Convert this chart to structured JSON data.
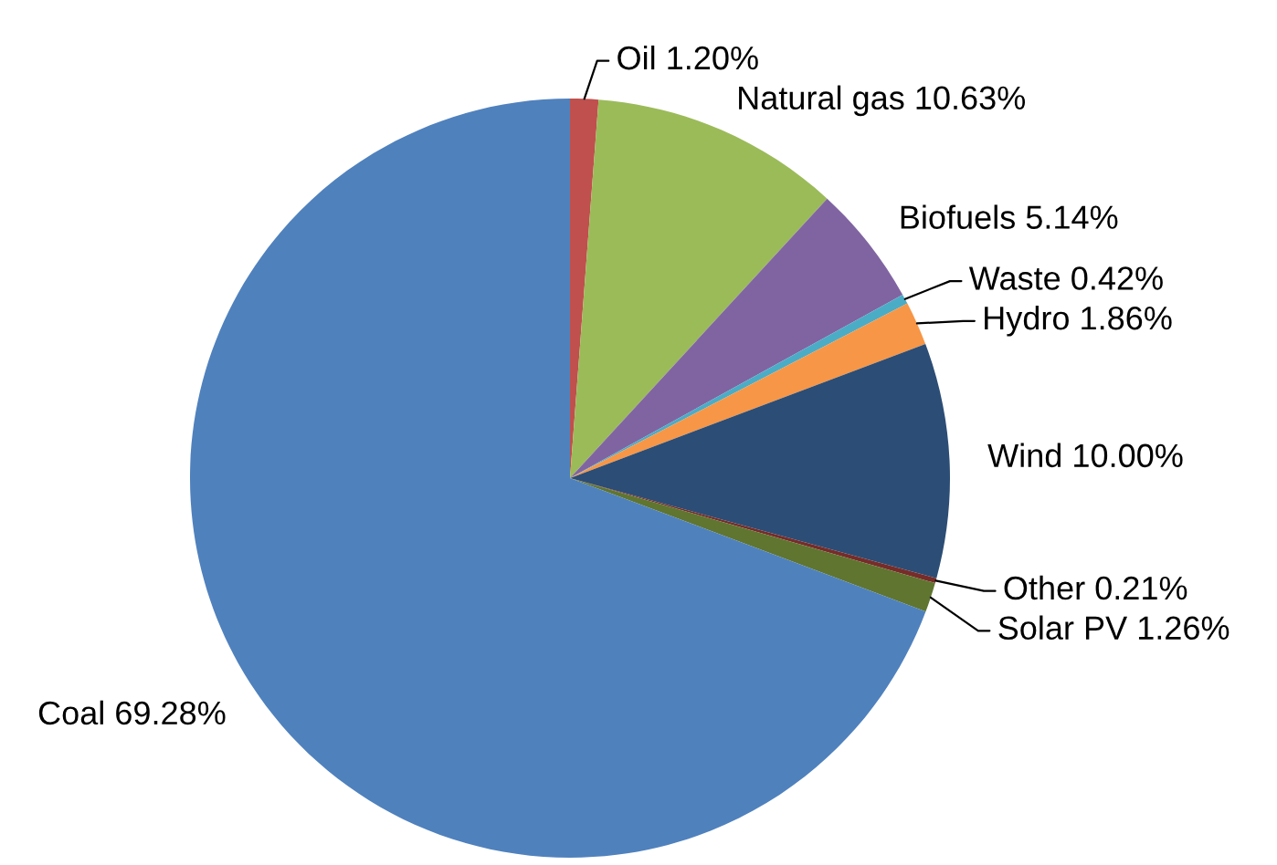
{
  "chart_data": {
    "type": "pie",
    "categories": [
      "Oil",
      "Natural gas",
      "Biofuels",
      "Waste",
      "Hydro",
      "Wind",
      "Other",
      "Solar PV",
      "Coal"
    ],
    "values": [
      1.2,
      10.63,
      5.14,
      0.42,
      1.86,
      10.0,
      0.21,
      1.26,
      69.28
    ],
    "value_labels": [
      "1.20%",
      "10.63%",
      "5.14%",
      "0.42%",
      "1.86%",
      "10.00%",
      "0.21%",
      "1.26%",
      "69.28%"
    ],
    "colors": [
      "#c0504d",
      "#9bbb59",
      "#8064a2",
      "#4bacc6",
      "#f79646",
      "#2c4d75",
      "#772c2a",
      "#5f7530",
      "#4f81bd"
    ],
    "legend": false
  }
}
